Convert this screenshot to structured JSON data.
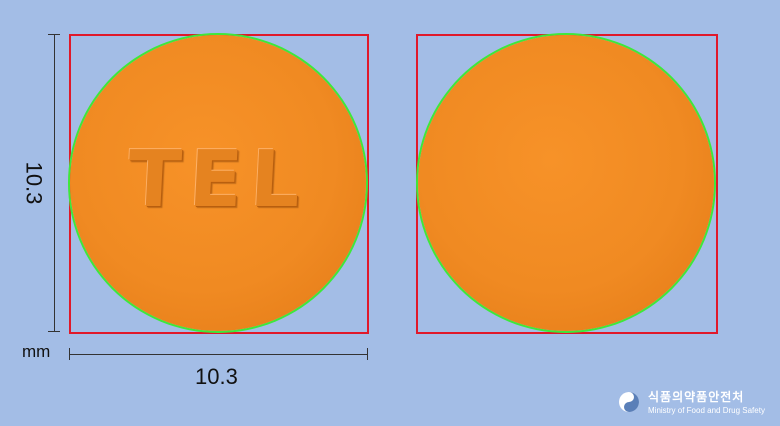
{
  "pill_front": {
    "imprint": "TEL",
    "color": "#f08a22"
  },
  "pill_back": {
    "imprint": "",
    "color": "#f08a22"
  },
  "dimensions": {
    "height": "10.3",
    "width": "10.3",
    "unit": "mm"
  },
  "colors": {
    "background": "#a3bde6",
    "bounding_box": "#e0192a",
    "outline": "#3ee83a"
  },
  "logo": {
    "icon": "mfds-emblem-icon",
    "korean": "식품의약품안전처",
    "english": "Ministry of Food and Drug Safety"
  }
}
